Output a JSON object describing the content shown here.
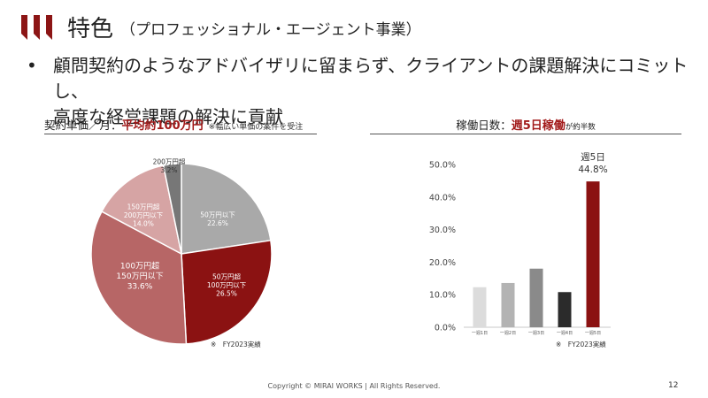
{
  "header": {
    "title": "特色",
    "subtitle": "（プロフェッショナル・エージェント事業）"
  },
  "bullet": {
    "symbol": "•",
    "line1": "顧問契約のようなアドバイザリに留まらず、クライアントの課題解決にコミットし、",
    "line2": "高度な経営課題の解決に貢献"
  },
  "left_panel": {
    "heading_prefix": "契約単価／月：",
    "heading_highlight": "平均約100万円",
    "heading_note": "※幅広い単価の案件を受注",
    "note": "※　FY2023実績"
  },
  "right_panel": {
    "heading_prefix": "稼働日数：",
    "heading_highlight": "週5日稼働",
    "heading_suffix": "が約半数",
    "note": "※　FY2023実績"
  },
  "footer": {
    "copyright": "Copyright © MIRAI WORKS | All Rights Reserved.",
    "page": "12"
  },
  "colors": {
    "accent": "#8c1515",
    "highlight_text": "#a21b1b"
  },
  "chart_data": [
    {
      "type": "pie",
      "start": "top, clockwise",
      "slices": [
        {
          "label": [
            "50万円以下"
          ],
          "pct_label": "22.6%",
          "value": 22.6,
          "color": "#a9a9a9",
          "text_color": "#ffffff"
        },
        {
          "label": [
            "50万円超",
            "100万円以下"
          ],
          "pct_label": "26.5%",
          "value": 26.5,
          "color": "#8b1212",
          "text_color": "#ffffff"
        },
        {
          "label": [
            "100万円超",
            "150万円以下"
          ],
          "pct_label": "33.6%",
          "value": 33.6,
          "color": "#b76666",
          "text_color": "#ffffff"
        },
        {
          "label": [
            "150万円超",
            "200万円以下"
          ],
          "pct_label": "14.0%",
          "value": 14.0,
          "color": "#d6a4a4",
          "text_color": "#ffffff"
        },
        {
          "label": [
            "200万円超"
          ],
          "pct_label": "3.2%",
          "value": 3.2,
          "color": "#777777",
          "text_color": "#333333"
        }
      ]
    },
    {
      "type": "bar",
      "categories": [
        "一週1日",
        "一週2日",
        "一週3日",
        "一週4日",
        "一週5日"
      ],
      "values": [
        12.3,
        13.6,
        18.0,
        10.8,
        44.8
      ],
      "colors": [
        "#dcdcdc",
        "#b3b3b3",
        "#8a8a8a",
        "#2b2b2b",
        "#8b1212"
      ],
      "ylim": [
        0,
        50
      ],
      "yticks": [
        "0.0%",
        "10.0%",
        "20.0%",
        "30.0%",
        "40.0%",
        "50.0%"
      ],
      "gridlines": false,
      "annotation": {
        "index": 4,
        "line1": "週5日",
        "line2": "44.8%"
      }
    }
  ]
}
